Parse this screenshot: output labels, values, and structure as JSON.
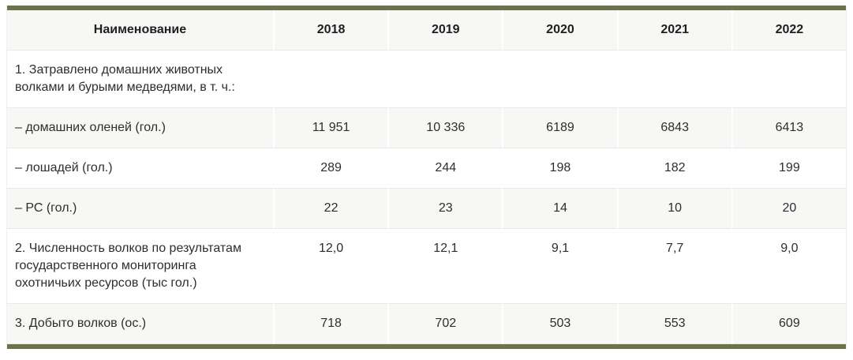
{
  "accent_color": "#6d724a",
  "row_shade_color": "#f7f7f5",
  "table": {
    "header": {
      "name_label": "Наименование",
      "years": [
        "2018",
        "2019",
        "2020",
        "2021",
        "2022"
      ]
    },
    "rows": [
      {
        "label": "1. Затравлено домашних животных волками и бурыми медведями, в т. ч.:",
        "values": [
          "",
          "",
          "",
          "",
          ""
        ]
      },
      {
        "label": "– домашних оленей (гол.)",
        "values": [
          "11 951",
          "10 336",
          "6189",
          "6843",
          "6413"
        ]
      },
      {
        "label": "– лошадей (гол.)",
        "values": [
          "289",
          "244",
          "198",
          "182",
          "199"
        ]
      },
      {
        "label": "– РС (гол.)",
        "values": [
          "22",
          "23",
          "14",
          "10",
          "20"
        ]
      },
      {
        "label": "2. Численность волков по результатам государственного мониторинга охотничьих ресурсов (тыс гол.)",
        "values": [
          "12,0",
          "12,1",
          "9,1",
          "7,7",
          "9,0"
        ]
      },
      {
        "label": "3. Добыто волков (ос.)",
        "values": [
          "718",
          "702",
          "503",
          "553",
          "609"
        ]
      }
    ]
  },
  "chart_data": {
    "type": "table",
    "title": "",
    "columns": [
      "Наименование",
      "2018",
      "2019",
      "2020",
      "2021",
      "2022"
    ],
    "rows": [
      [
        "1. Затравлено домашних животных волками и бурыми медведями, в т. ч.:",
        "",
        "",
        "",
        "",
        ""
      ],
      [
        "– домашних оленей (гол.)",
        "11 951",
        "10 336",
        "6189",
        "6843",
        "6413"
      ],
      [
        "– лошадей (гол.)",
        "289",
        "244",
        "198",
        "182",
        "199"
      ],
      [
        "– РС (гол.)",
        "22",
        "23",
        "14",
        "10",
        "20"
      ],
      [
        "2. Численность волков по результатам государственного мониторинга охотничьих ресурсов (тыс гол.)",
        "12,0",
        "12,1",
        "9,1",
        "7,7",
        "9,0"
      ],
      [
        "3. Добыто волков (ос.)",
        "718",
        "702",
        "503",
        "553",
        "609"
      ]
    ]
  }
}
